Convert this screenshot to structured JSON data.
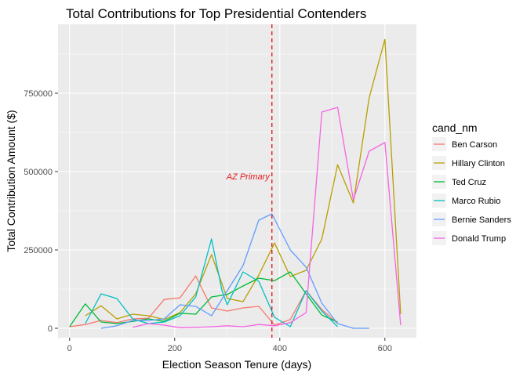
{
  "chart_data": {
    "type": "line",
    "title": "Total Contributions for Top Presidential Contenders",
    "xlabel": "Election Season Tenure (days)",
    "ylabel": "Total Contribution Amount ($)",
    "xlim": [
      -22,
      660
    ],
    "ylim": [
      -30000,
      970000
    ],
    "x_ticks": [
      0,
      200,
      400,
      600
    ],
    "x_tick_labels": [
      "0",
      "200",
      "400",
      "600"
    ],
    "y_ticks": [
      0,
      250000,
      500000,
      750000
    ],
    "y_tick_labels": [
      "0",
      "250000",
      "500000",
      "750000"
    ],
    "grid": true,
    "legend": {
      "title": "cand_nm",
      "position": "right"
    },
    "annotation": {
      "x": 385,
      "label": "AZ Primary",
      "style": "dashed",
      "color": "#e41a1c"
    },
    "series": [
      {
        "name": "Ben Carson",
        "color": "#f8766d",
        "x": [
          0,
          30,
          60,
          90,
          120,
          150,
          180,
          210,
          240,
          270,
          300,
          330,
          360,
          390,
          420,
          450,
          480,
          510
        ],
        "y": [
          5000,
          12000,
          25000,
          18000,
          30000,
          32000,
          92000,
          97000,
          167000,
          65000,
          55000,
          65000,
          70000,
          10000,
          28000,
          120000,
          60000,
          15000
        ]
      },
      {
        "name": "Hillary Clinton",
        "color": "#b79f00",
        "x": [
          30,
          60,
          90,
          120,
          150,
          180,
          210,
          240,
          270,
          300,
          330,
          360,
          390,
          420,
          450,
          480,
          510,
          540,
          570,
          600,
          630
        ],
        "y": [
          40000,
          72000,
          30000,
          45000,
          40000,
          28000,
          50000,
          110000,
          235000,
          95000,
          85000,
          170000,
          272000,
          165000,
          185000,
          285000,
          522000,
          400000,
          735000,
          922000,
          45000
        ]
      },
      {
        "name": "Ted Cruz",
        "color": "#00ba38",
        "x": [
          0,
          30,
          60,
          90,
          120,
          150,
          180,
          210,
          240,
          270,
          300,
          330,
          360,
          390,
          420,
          450,
          480,
          510
        ],
        "y": [
          5000,
          78000,
          20000,
          15000,
          22000,
          30000,
          22000,
          48000,
          45000,
          100000,
          108000,
          135000,
          160000,
          152000,
          180000,
          110000,
          42000,
          20000
        ]
      },
      {
        "name": "Marco Rubio",
        "color": "#00bfc4",
        "x": [
          30,
          60,
          90,
          120,
          150,
          180,
          210,
          240,
          270,
          290,
          300,
          330,
          360,
          390,
          420,
          450,
          480,
          510
        ],
        "y": [
          15000,
          110000,
          95000,
          30000,
          15000,
          20000,
          40000,
          100000,
          285000,
          120000,
          75000,
          180000,
          150000,
          35000,
          5000,
          120000,
          55000,
          5000
        ]
      },
      {
        "name": "Bernie Sanders",
        "color": "#619cff",
        "x": [
          60,
          90,
          120,
          150,
          180,
          210,
          240,
          270,
          300,
          330,
          360,
          385,
          420,
          450,
          480,
          510,
          540,
          570
        ],
        "y": [
          0,
          8000,
          25000,
          25000,
          30000,
          75000,
          70000,
          40000,
          120000,
          200000,
          345000,
          365000,
          250000,
          195000,
          80000,
          15000,
          0,
          0
        ]
      },
      {
        "name": "Donald Trump",
        "color": "#f564e3",
        "x": [
          120,
          150,
          180,
          210,
          240,
          270,
          300,
          330,
          360,
          390,
          420,
          450,
          480,
          510,
          540,
          570,
          600,
          630
        ],
        "y": [
          3000,
          15000,
          10000,
          2000,
          3000,
          5000,
          8000,
          5000,
          12000,
          8000,
          18000,
          50000,
          690000,
          705000,
          410000,
          565000,
          593000,
          10000
        ]
      }
    ]
  }
}
